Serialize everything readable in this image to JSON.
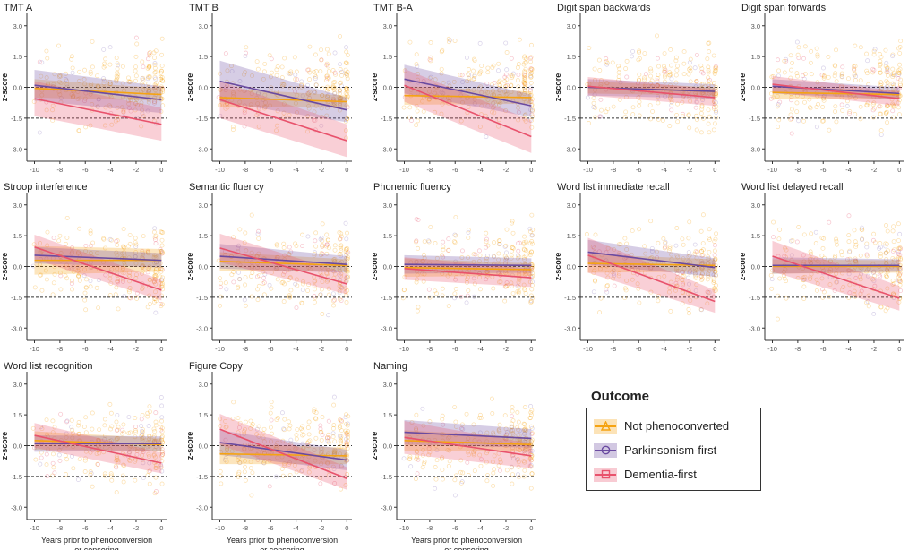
{
  "legend": {
    "title": "Outcome",
    "items": [
      {
        "label": "Not phenoconverted",
        "color": "#f5a312",
        "marker": "triangle"
      },
      {
        "label": "Parkinsonism-first",
        "color": "#6a4aa0",
        "marker": "circle"
      },
      {
        "label": "Dementia-first",
        "color": "#e8526c",
        "marker": "square"
      }
    ]
  },
  "common": {
    "ylabel": "z-score",
    "xlabel": "Years prior to phenoconversion\nor censoring",
    "xticks": [
      -10,
      -8,
      -6,
      -4,
      -2,
      0
    ],
    "yticks": [
      -3.0,
      -1.5,
      0.0,
      1.5,
      3.0
    ],
    "ylim": [
      -3.6,
      3.6
    ],
    "xlim": [
      -10.6,
      0.4
    ],
    "reference_lines": [
      0.0,
      -1.5
    ]
  },
  "chart_data": [
    {
      "type": "line",
      "title": "TMT A",
      "x": [
        -10,
        0
      ],
      "series": [
        {
          "name": "Not phenoconverted",
          "y": [
            -0.05,
            -0.35
          ],
          "ci": [
            0.45,
            0.3
          ]
        },
        {
          "name": "Parkinsonism-first",
          "y": [
            0.1,
            -0.6
          ],
          "ci": [
            0.75,
            0.65
          ]
        },
        {
          "name": "Dementia-first",
          "y": [
            -0.55,
            -1.8
          ],
          "ci": [
            0.85,
            0.8
          ]
        }
      ]
    },
    {
      "type": "line",
      "title": "TMT B",
      "x": [
        -10,
        0
      ],
      "series": [
        {
          "name": "Not phenoconverted",
          "y": [
            -0.5,
            -0.7
          ],
          "ci": [
            0.45,
            0.3
          ]
        },
        {
          "name": "Parkinsonism-first",
          "y": [
            0.3,
            -1.1
          ],
          "ci": [
            1.0,
            0.6
          ]
        },
        {
          "name": "Dementia-first",
          "y": [
            -0.6,
            -2.6
          ],
          "ci": [
            0.9,
            0.8
          ]
        }
      ]
    },
    {
      "type": "line",
      "title": "TMT B-A",
      "x": [
        -10,
        0
      ],
      "series": [
        {
          "name": "Not phenoconverted",
          "y": [
            -0.4,
            -0.5
          ],
          "ci": [
            0.45,
            0.3
          ]
        },
        {
          "name": "Parkinsonism-first",
          "y": [
            0.4,
            -0.9
          ],
          "ci": [
            0.7,
            0.55
          ]
        },
        {
          "name": "Dementia-first",
          "y": [
            0.1,
            -2.4
          ],
          "ci": [
            0.8,
            0.8
          ]
        }
      ]
    },
    {
      "type": "line",
      "title": "Digit span backwards",
      "x": [
        -10,
        0
      ],
      "series": [
        {
          "name": "Not phenoconverted",
          "y": [
            0.0,
            -0.2
          ],
          "ci": [
            0.3,
            0.2
          ]
        },
        {
          "name": "Parkinsonism-first",
          "y": [
            0.0,
            -0.2
          ],
          "ci": [
            0.4,
            0.35
          ]
        },
        {
          "name": "Dementia-first",
          "y": [
            0.05,
            -0.5
          ],
          "ci": [
            0.45,
            0.4
          ]
        }
      ]
    },
    {
      "type": "line",
      "title": "Digit span forwards",
      "x": [
        -10,
        0
      ],
      "series": [
        {
          "name": "Not phenoconverted",
          "y": [
            -0.25,
            -0.35
          ],
          "ci": [
            0.3,
            0.2
          ]
        },
        {
          "name": "Parkinsonism-first",
          "y": [
            0.05,
            -0.3
          ],
          "ci": [
            0.35,
            0.3
          ]
        },
        {
          "name": "Dementia-first",
          "y": [
            0.15,
            -0.55
          ],
          "ci": [
            0.4,
            0.35
          ]
        }
      ]
    },
    {
      "type": "line",
      "title": "Stroop interference",
      "x": [
        -10,
        0
      ],
      "series": [
        {
          "name": "Not phenoconverted",
          "y": [
            0.3,
            0.3
          ],
          "ci": [
            0.7,
            0.55
          ]
        },
        {
          "name": "Parkinsonism-first",
          "y": [
            0.55,
            0.3
          ],
          "ci": [
            0.4,
            0.35
          ]
        },
        {
          "name": "Dementia-first",
          "y": [
            0.95,
            -1.15
          ],
          "ci": [
            0.6,
            0.5
          ]
        }
      ]
    },
    {
      "type": "line",
      "title": "Semantic fluency",
      "x": [
        -10,
        0
      ],
      "series": [
        {
          "name": "Not phenoconverted",
          "y": [
            0.25,
            0.05
          ],
          "ci": [
            0.45,
            0.3
          ]
        },
        {
          "name": "Parkinsonism-first",
          "y": [
            0.5,
            0.1
          ],
          "ci": [
            0.6,
            0.4
          ]
        },
        {
          "name": "Dementia-first",
          "y": [
            0.9,
            -0.85
          ],
          "ci": [
            0.7,
            0.5
          ]
        }
      ]
    },
    {
      "type": "line",
      "title": "Phonemic fluency",
      "x": [
        -10,
        0
      ],
      "series": [
        {
          "name": "Not phenoconverted",
          "y": [
            -0.05,
            -0.15
          ],
          "ci": [
            0.45,
            0.3
          ]
        },
        {
          "name": "Parkinsonism-first",
          "y": [
            0.1,
            0.05
          ],
          "ci": [
            0.45,
            0.35
          ]
        },
        {
          "name": "Dementia-first",
          "y": [
            -0.1,
            -0.55
          ],
          "ci": [
            0.55,
            0.45
          ]
        }
      ]
    },
    {
      "type": "line",
      "title": "Word list immediate recall",
      "x": [
        -10,
        0
      ],
      "series": [
        {
          "name": "Not phenoconverted",
          "y": [
            0.15,
            0.05
          ],
          "ci": [
            0.45,
            0.3
          ]
        },
        {
          "name": "Parkinsonism-first",
          "y": [
            0.7,
            -0.05
          ],
          "ci": [
            0.6,
            0.45
          ]
        },
        {
          "name": "Dementia-first",
          "y": [
            0.55,
            -1.7
          ],
          "ci": [
            0.85,
            0.55
          ]
        }
      ]
    },
    {
      "type": "line",
      "title": "Word list delayed recall",
      "x": [
        -10,
        0
      ],
      "series": [
        {
          "name": "Not phenoconverted",
          "y": [
            0.0,
            0.0
          ],
          "ci": [
            0.35,
            0.3
          ]
        },
        {
          "name": "Parkinsonism-first",
          "y": [
            0.05,
            0.05
          ],
          "ci": [
            0.4,
            0.3
          ]
        },
        {
          "name": "Dementia-first",
          "y": [
            0.5,
            -1.55
          ],
          "ci": [
            0.75,
            0.6
          ]
        }
      ]
    },
    {
      "type": "line",
      "title": "Word list recognition",
      "x": [
        -10,
        0
      ],
      "series": [
        {
          "name": "Not phenoconverted",
          "y": [
            0.25,
            0.05
          ],
          "ci": [
            0.45,
            0.3
          ]
        },
        {
          "name": "Parkinsonism-first",
          "y": [
            0.1,
            0.1
          ],
          "ci": [
            0.4,
            0.35
          ]
        },
        {
          "name": "Dementia-first",
          "y": [
            0.5,
            -0.85
          ],
          "ci": [
            0.6,
            0.5
          ]
        }
      ]
    },
    {
      "type": "line",
      "title": "Figure Copy",
      "x": [
        -10,
        0
      ],
      "series": [
        {
          "name": "Not phenoconverted",
          "y": [
            -0.4,
            -0.5
          ],
          "ci": [
            0.5,
            0.4
          ]
        },
        {
          "name": "Parkinsonism-first",
          "y": [
            0.15,
            -0.7
          ],
          "ci": [
            0.6,
            0.5
          ]
        },
        {
          "name": "Dementia-first",
          "y": [
            0.8,
            -1.6
          ],
          "ci": [
            0.75,
            0.55
          ]
        }
      ]
    },
    {
      "type": "line",
      "title": "Naming",
      "x": [
        -10,
        0
      ],
      "series": [
        {
          "name": "Not phenoconverted",
          "y": [
            0.25,
            0.05
          ],
          "ci": [
            0.5,
            0.35
          ]
        },
        {
          "name": "Parkinsonism-first",
          "y": [
            0.65,
            0.35
          ],
          "ci": [
            0.6,
            0.45
          ]
        },
        {
          "name": "Dementia-first",
          "y": [
            0.4,
            -0.5
          ],
          "ci": [
            0.8,
            0.6
          ]
        }
      ]
    }
  ]
}
